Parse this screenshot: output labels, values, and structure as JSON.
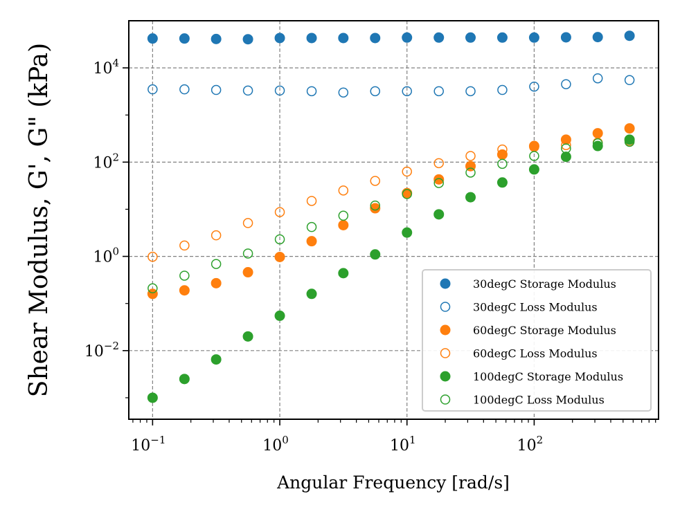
{
  "chart_data": {
    "type": "scatter",
    "xlabel": "Angular Frequency [rad/s]",
    "ylabel": "Shear Modulus, G', G\" (kPa)",
    "x_scale": "log",
    "y_scale": "log",
    "xlim": [
      0.065,
      950
    ],
    "ylim": [
      0.00035,
      100000
    ],
    "grid": true,
    "legend_position": "lower-right",
    "x_ticks": [
      {
        "base": "10",
        "exp": "−1",
        "value": 0.1
      },
      {
        "base": "10",
        "exp": "0",
        "value": 1
      },
      {
        "base": "10",
        "exp": "1",
        "value": 10
      },
      {
        "base": "10",
        "exp": "2",
        "value": 100
      }
    ],
    "y_ticks": [
      {
        "base": "10",
        "exp": "−2",
        "value": 0.01
      },
      {
        "base": "10",
        "exp": "0",
        "value": 1
      },
      {
        "base": "10",
        "exp": "2",
        "value": 100
      },
      {
        "base": "10",
        "exp": "4",
        "value": 10000
      }
    ],
    "x": [
      0.1,
      0.178,
      0.316,
      0.562,
      1.0,
      1.78,
      3.16,
      5.62,
      10.0,
      17.8,
      31.6,
      56.2,
      100,
      178,
      316,
      562
    ],
    "series": [
      {
        "name": "30degC Storage Modulus",
        "color": "#1f77b4",
        "filled": true,
        "y": [
          42000,
          42000,
          41000,
          40500,
          43000,
          43000,
          43000,
          43000,
          44000,
          44000,
          44000,
          44000,
          44000,
          44500,
          45000,
          48000
        ]
      },
      {
        "name": "30degC Loss Modulus",
        "color": "#1f77b4",
        "filled": false,
        "y": [
          3500,
          3500,
          3400,
          3300,
          3300,
          3200,
          3000,
          3200,
          3200,
          3200,
          3200,
          3400,
          4000,
          4500,
          6000,
          5500
        ]
      },
      {
        "name": "60degC Storage Modulus",
        "color": "#ff7f0e",
        "filled": true,
        "y": [
          0.16,
          0.19,
          0.27,
          0.46,
          0.97,
          2.1,
          4.6,
          10.5,
          22,
          43,
          82,
          145,
          220,
          300,
          410,
          520
        ]
      },
      {
        "name": "60degC Loss Modulus",
        "color": "#ff7f0e",
        "filled": false,
        "y": [
          0.98,
          1.7,
          2.8,
          5.1,
          8.7,
          15,
          25,
          40,
          63,
          95,
          135,
          185,
          210,
          230,
          260,
          280
        ]
      },
      {
        "name": "100degC Storage Modulus",
        "color": "#2ca02c",
        "filled": true,
        "y": [
          0.001,
          0.0025,
          0.0065,
          0.02,
          0.055,
          0.16,
          0.44,
          1.1,
          3.2,
          7.8,
          18,
          37,
          70,
          130,
          220,
          300
        ]
      },
      {
        "name": "100degC Loss Modulus",
        "color": "#2ca02c",
        "filled": false,
        "y": [
          0.21,
          0.39,
          0.69,
          1.15,
          2.3,
          4.2,
          7.3,
          12,
          21,
          36,
          60,
          92,
          135,
          195,
          250,
          270
        ]
      }
    ]
  }
}
